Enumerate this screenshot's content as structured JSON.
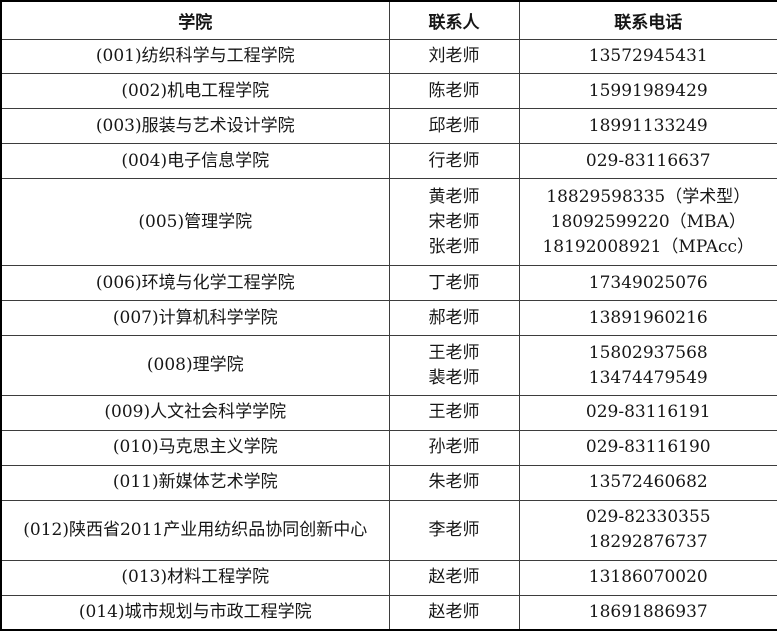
{
  "colors": {
    "background": "#ffffff",
    "outer_border": "#000000",
    "inner_border": "#3d3d3d",
    "text": "#161616"
  },
  "table": {
    "headers": {
      "college": "学院",
      "contact": "联系人",
      "phone": "联系电话"
    },
    "rows": [
      {
        "college": "(001)纺织科学与工程学院",
        "contacts": [
          "刘老师"
        ],
        "phones": [
          "13572945431"
        ]
      },
      {
        "college": "(002)机电工程学院",
        "contacts": [
          "陈老师"
        ],
        "phones": [
          "15991989429"
        ]
      },
      {
        "college": "(003)服装与艺术设计学院",
        "contacts": [
          "邱老师"
        ],
        "phones": [
          "18991133249"
        ]
      },
      {
        "college": "(004)电子信息学院",
        "contacts": [
          "行老师"
        ],
        "phones": [
          "029-83116637"
        ]
      },
      {
        "college": "(005)管理学院",
        "contacts": [
          "黄老师",
          "宋老师",
          "张老师"
        ],
        "phones": [
          "18829598335（学术型）",
          "18092599220（MBA）",
          "18192008921（MPAcc）"
        ]
      },
      {
        "college": "(006)环境与化学工程学院",
        "contacts": [
          "丁老师"
        ],
        "phones": [
          "17349025076"
        ]
      },
      {
        "college": "(007)计算机科学学院",
        "contacts": [
          "郝老师"
        ],
        "phones": [
          "13891960216"
        ]
      },
      {
        "college": "(008)理学院",
        "contacts": [
          "王老师",
          "裴老师"
        ],
        "phones": [
          "15802937568",
          "13474479549"
        ]
      },
      {
        "college": "(009)人文社会科学学院",
        "contacts": [
          "王老师"
        ],
        "phones": [
          "029-83116191"
        ]
      },
      {
        "college": "(010)马克思主义学院",
        "contacts": [
          "孙老师"
        ],
        "phones": [
          "029-83116190"
        ]
      },
      {
        "college": "(011)新媒体艺术学院",
        "contacts": [
          "朱老师"
        ],
        "phones": [
          "13572460682"
        ]
      },
      {
        "college": "(012)陕西省2011产业用纺织品协同创新中心",
        "contacts": [
          "李老师"
        ],
        "phones": [
          "029-82330355",
          "18292876737"
        ]
      },
      {
        "college": "(013)材料工程学院",
        "contacts": [
          "赵老师"
        ],
        "phones": [
          "13186070020"
        ]
      },
      {
        "college": "(014)城市规划与市政工程学院",
        "contacts": [
          "赵老师"
        ],
        "phones": [
          "18691886937"
        ]
      }
    ]
  }
}
